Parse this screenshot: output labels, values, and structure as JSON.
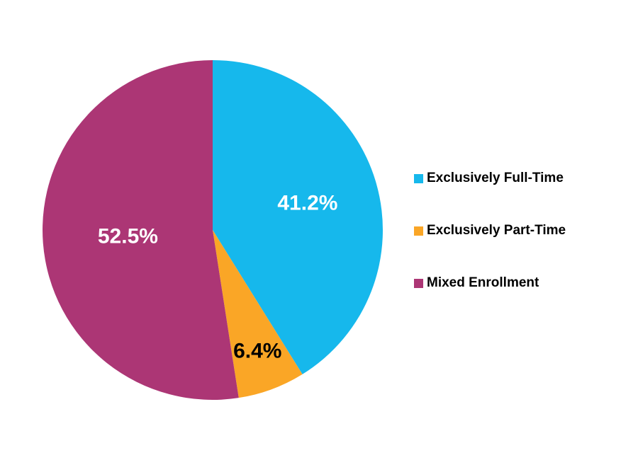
{
  "chart_data": {
    "type": "pie",
    "title": "",
    "categories": [
      "Exclusively Full-Time",
      "Exclusively Part-Time",
      "Mixed Enrollment"
    ],
    "values": [
      41.2,
      6.4,
      52.5
    ],
    "slice_labels": [
      "41.2%",
      "6.4%",
      "52.5%"
    ],
    "colors": [
      "#16B8EC",
      "#FAA626",
      "#AC3675"
    ],
    "slice_label_colors": [
      "#FFFFFF",
      "#000000",
      "#FFFFFF"
    ],
    "legend_position": "right",
    "start_angle_deg": 0,
    "clockwise": true,
    "label_radius_fractions": [
      0.58,
      0.76,
      0.5
    ]
  }
}
